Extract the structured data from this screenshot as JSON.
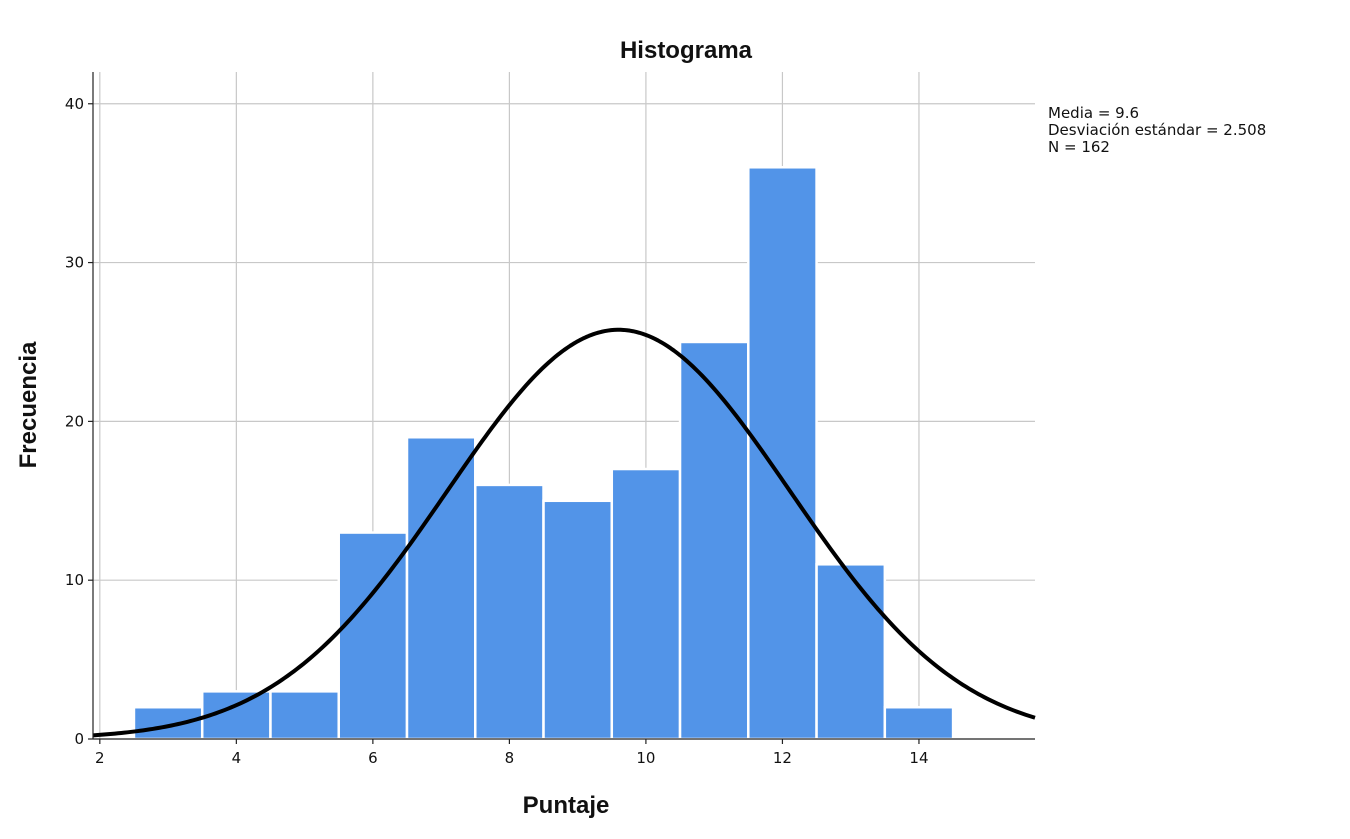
{
  "chart_data": {
    "type": "bar",
    "title": "Histograma",
    "xlabel": "Puntaje",
    "ylabel": "Frecuencia",
    "x_ticks": [
      2,
      4,
      6,
      8,
      10,
      12,
      14
    ],
    "y_ticks": [
      0,
      10,
      20,
      30,
      40
    ],
    "xlim": [
      1.9,
      15.7
    ],
    "ylim": [
      0,
      42
    ],
    "bins": [
      {
        "center": 3,
        "value": 2
      },
      {
        "center": 4,
        "value": 3
      },
      {
        "center": 5,
        "value": 3
      },
      {
        "center": 6,
        "value": 13
      },
      {
        "center": 7,
        "value": 19
      },
      {
        "center": 8,
        "value": 16
      },
      {
        "center": 9,
        "value": 15
      },
      {
        "center": 10,
        "value": 17
      },
      {
        "center": 11,
        "value": 25
      },
      {
        "center": 12,
        "value": 36
      },
      {
        "center": 13,
        "value": 11
      },
      {
        "center": 14,
        "value": 2
      }
    ],
    "bin_width": 1,
    "normal_curve": {
      "mean": 9.6,
      "sd": 2.508,
      "n": 162
    },
    "stats": [
      "Media = 9.6",
      "Desviación estándar = 2.508",
      "N = 162"
    ],
    "grid": true,
    "bar_color": "#5294e8",
    "curve_color": "#000000"
  }
}
